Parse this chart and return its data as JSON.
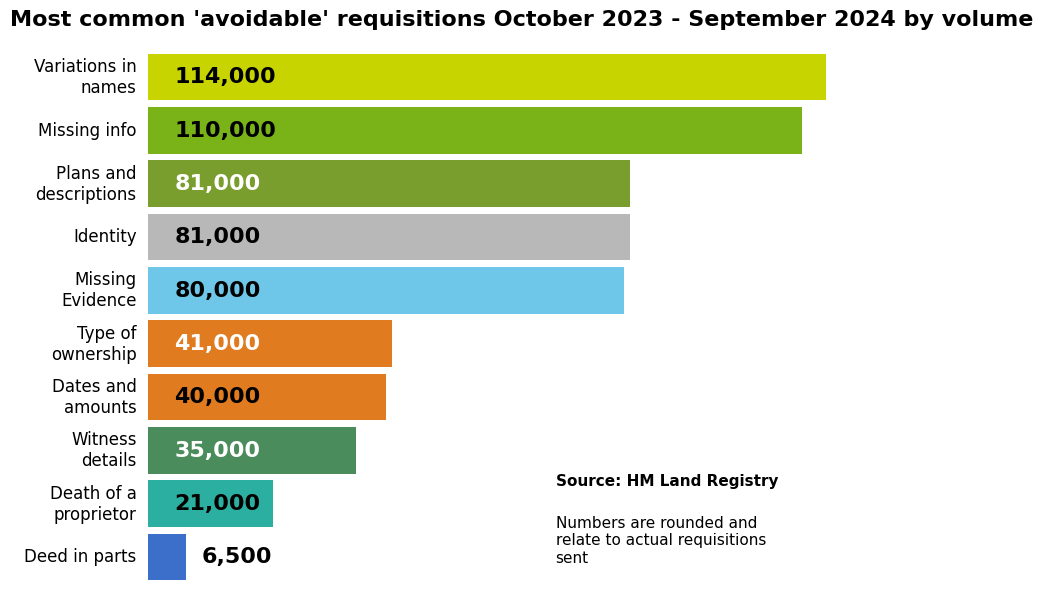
{
  "title": "Most common 'avoidable' requisitions October 2023 - September 2024 by volume",
  "categories": [
    "Variations in\nnames",
    "Missing info",
    "Plans and\ndescriptions",
    "Identity",
    "Missing\nEvidence",
    "Type of\nownership",
    "Dates and\namounts",
    "Witness\ndetails",
    "Death of a\nproprietor",
    "Deed in parts"
  ],
  "values": [
    114000,
    110000,
    81000,
    81000,
    80000,
    41000,
    40000,
    35000,
    21000,
    6500
  ],
  "bar_colors": [
    "#c8d400",
    "#7ab317",
    "#7a9e2e",
    "#b8b8b8",
    "#6ec6e8",
    "#e07b20",
    "#e07b20",
    "#4a8c5c",
    "#2aafa0",
    "#3b6fc9"
  ],
  "value_labels": [
    "114,000",
    "110,000",
    "81,000",
    "81,000",
    "80,000",
    "41,000",
    "40,000",
    "35,000",
    "21,000",
    "6,500"
  ],
  "value_colors": [
    "black",
    "black",
    "white",
    "black",
    "black",
    "white",
    "black",
    "white",
    "black",
    "black"
  ],
  "label_inside": [
    true,
    true,
    true,
    true,
    true,
    true,
    true,
    true,
    true,
    false
  ],
  "source_bold": "Source: HM Land Registry",
  "source_normal": "Numbers are rounded and\nrelate to actual requisitions\nsent",
  "xlim": [
    0,
    125000
  ],
  "background_color": "#ffffff",
  "title_fontsize": 16,
  "label_fontsize": 12,
  "value_fontsize": 16
}
